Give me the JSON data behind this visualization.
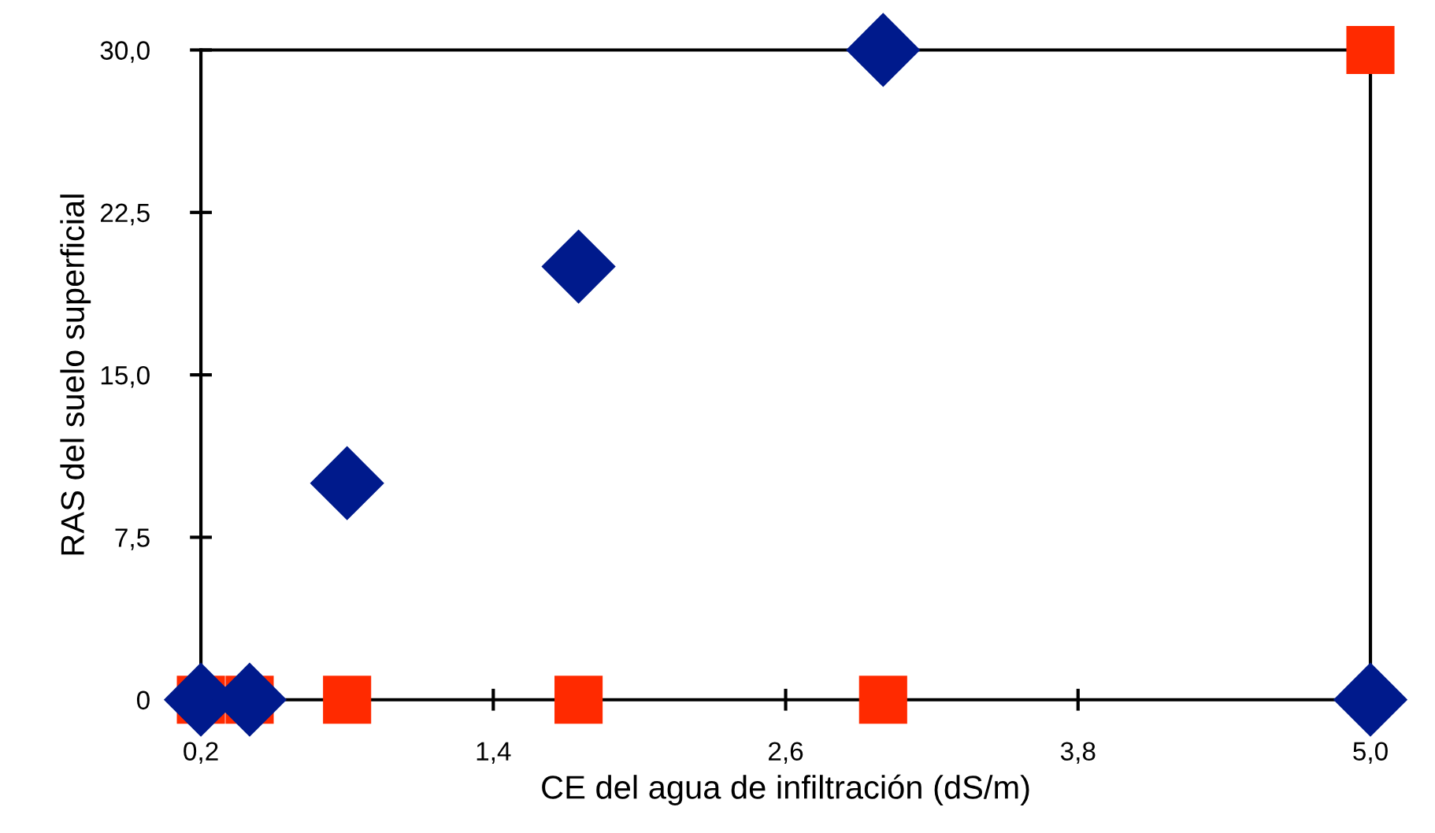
{
  "chart_data": {
    "type": "scatter",
    "xlabel": "CE del agua de infiltración (dS/m)",
    "ylabel": "RAS del suelo superficial",
    "x": [
      0.2,
      0.4,
      0.8,
      1.75,
      3.0,
      5.0
    ],
    "series": [
      {
        "color": "#ff2a00",
        "marker": "square",
        "values": [
          0,
          0,
          0,
          0,
          0,
          30
        ]
      },
      {
        "color": "#001a8c",
        "marker": "diamond",
        "values": [
          0,
          0,
          10,
          20,
          30,
          0
        ]
      }
    ],
    "xlim": [
      0.2,
      5.0
    ],
    "ylim": [
      0,
      30
    ],
    "xticks": [
      {
        "value": 0.2,
        "label": "0,2"
      },
      {
        "value": 1.4,
        "label": "1,4"
      },
      {
        "value": 2.6,
        "label": "2,6"
      },
      {
        "value": 3.8,
        "label": "3,8"
      },
      {
        "value": 5.0,
        "label": "5,0"
      }
    ],
    "yticks": [
      0,
      {
        "value": 7.5,
        "label": "7,5"
      },
      {
        "value": 15,
        "label": "15,0"
      },
      {
        "value": 22.5,
        "label": "22,5"
      },
      {
        "value": 30,
        "label": "30,0"
      }
    ],
    "grid": false,
    "legend": false
  }
}
